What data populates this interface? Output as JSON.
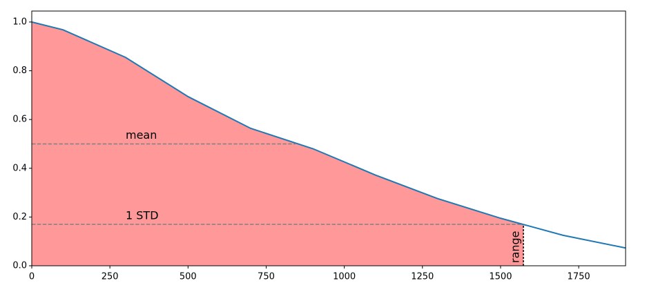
{
  "chart_data": {
    "type": "line",
    "color": "#1f77b4",
    "fill_color": "#ff9999",
    "x": [
      0,
      100,
      300,
      500,
      700,
      900,
      1100,
      1300,
      1500,
      1700,
      1900
    ],
    "values": [
      1.0,
      0.968,
      0.855,
      0.694,
      0.564,
      0.48,
      0.372,
      0.275,
      0.195,
      0.125,
      0.073
    ],
    "xlim": [
      0,
      1900
    ],
    "xticks": [
      0,
      250,
      500,
      750,
      1000,
      1250,
      1500,
      1750
    ],
    "ylim": [
      0,
      1.045
    ],
    "yticks": [
      {
        "value": 0,
        "label": "0.0"
      },
      {
        "value": 0.2,
        "label": "0.2"
      },
      {
        "value": 0.4,
        "label": "0.4"
      },
      {
        "value": 0.6,
        "label": "0.6"
      },
      {
        "value": 0.8,
        "label": "0.8"
      },
      {
        "value": 1,
        "label": "1.0"
      }
    ],
    "annotations": [
      {
        "label": "mean",
        "y": 0.5,
        "x_end": 843
      },
      {
        "label": "1 STD",
        "y": 0.17,
        "x_end": 1573
      }
    ],
    "range": {
      "label": "range",
      "x": 1573,
      "y_end": 0.17
    }
  }
}
